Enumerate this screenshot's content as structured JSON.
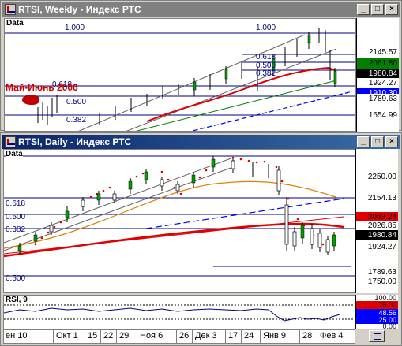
{
  "weekly": {
    "title": "RTSI, Weekly - Индекс РТС",
    "panel_label": "Data",
    "fib_labels": {
      "left_top": "1.000",
      "right_top": "1.000",
      "f618": "0.618",
      "f500": "0.500",
      "f382": "0.382",
      "left_618": "0.618",
      "left_500": "0.500",
      "left_382": "0.382"
    },
    "event_label": "Май-Июнь 2006",
    "price_tags": [
      {
        "value": "2145.57",
        "bg": "#ffffff",
        "fg": "#000000"
      },
      {
        "value": "2061.80",
        "bg": "#008000",
        "fg": "#000000"
      },
      {
        "value": "1980.84",
        "bg": "#000000",
        "fg": "#ffffff"
      },
      {
        "value": "1924.27",
        "bg": "#ffffff",
        "fg": "#000000"
      },
      {
        "value": "1910.30",
        "bg": "#0000ff",
        "fg": "#ffffff"
      },
      {
        "value": "1789.63",
        "bg": "#ffffff",
        "fg": "#000000"
      },
      {
        "value": "1654.99",
        "bg": "#ffffff",
        "fg": "#000000"
      }
    ]
  },
  "daily": {
    "title": "RTSI, Daily - Индекс РТС",
    "panel_label": "Data",
    "fib_labels": {
      "f618": "0.618",
      "f500": "0.500",
      "f382": "0.382",
      "f500b": "0.500"
    },
    "axis_ticks": {
      "t2250": "2250.00",
      "t1750": "1750.00"
    },
    "price_tags": [
      {
        "value": "2154.13",
        "bg": "#ffffff",
        "fg": "#000000"
      },
      {
        "value": "2063.24",
        "bg": "#e00000",
        "fg": "#000000"
      },
      {
        "value": "2026.85",
        "bg": "#ffffff",
        "fg": "#000000"
      },
      {
        "value": "1980.84",
        "bg": "#000000",
        "fg": "#ffffff"
      },
      {
        "value": "1924.27",
        "bg": "#ffffff",
        "fg": "#000000"
      },
      {
        "value": "1789.63",
        "bg": "#ffffff",
        "fg": "#000000"
      }
    ]
  },
  "rsi": {
    "label": "RSI, 9",
    "axis_ticks": {
      "t100": "100.00",
      "t0": "0.00"
    },
    "price_tags": [
      {
        "value": "75.00",
        "bg": "#e00000",
        "fg": "#000000"
      },
      {
        "value": "48.56",
        "bg": "#0000ff",
        "fg": "#ffffff"
      },
      {
        "value": "25.00",
        "bg": "#0000ff",
        "fg": "#ffffff"
      }
    ]
  },
  "x_axis": {
    "labels": [
      "ен 10",
      "Окт 1",
      "15",
      "22",
      "29",
      "Ноя 6",
      "26",
      "Дек 3",
      "17",
      "24",
      "Янв 9",
      "28",
      "Фев 4"
    ]
  },
  "colors": {
    "window_bg": "#d4d0c8",
    "active_title": "#0a246a",
    "inactive_title": "#808080",
    "fib": "#000080",
    "ma_red": "#e00000",
    "ma_orange": "#e08000",
    "trend_blue": "#0000ff",
    "trend_green": "#008000"
  }
}
